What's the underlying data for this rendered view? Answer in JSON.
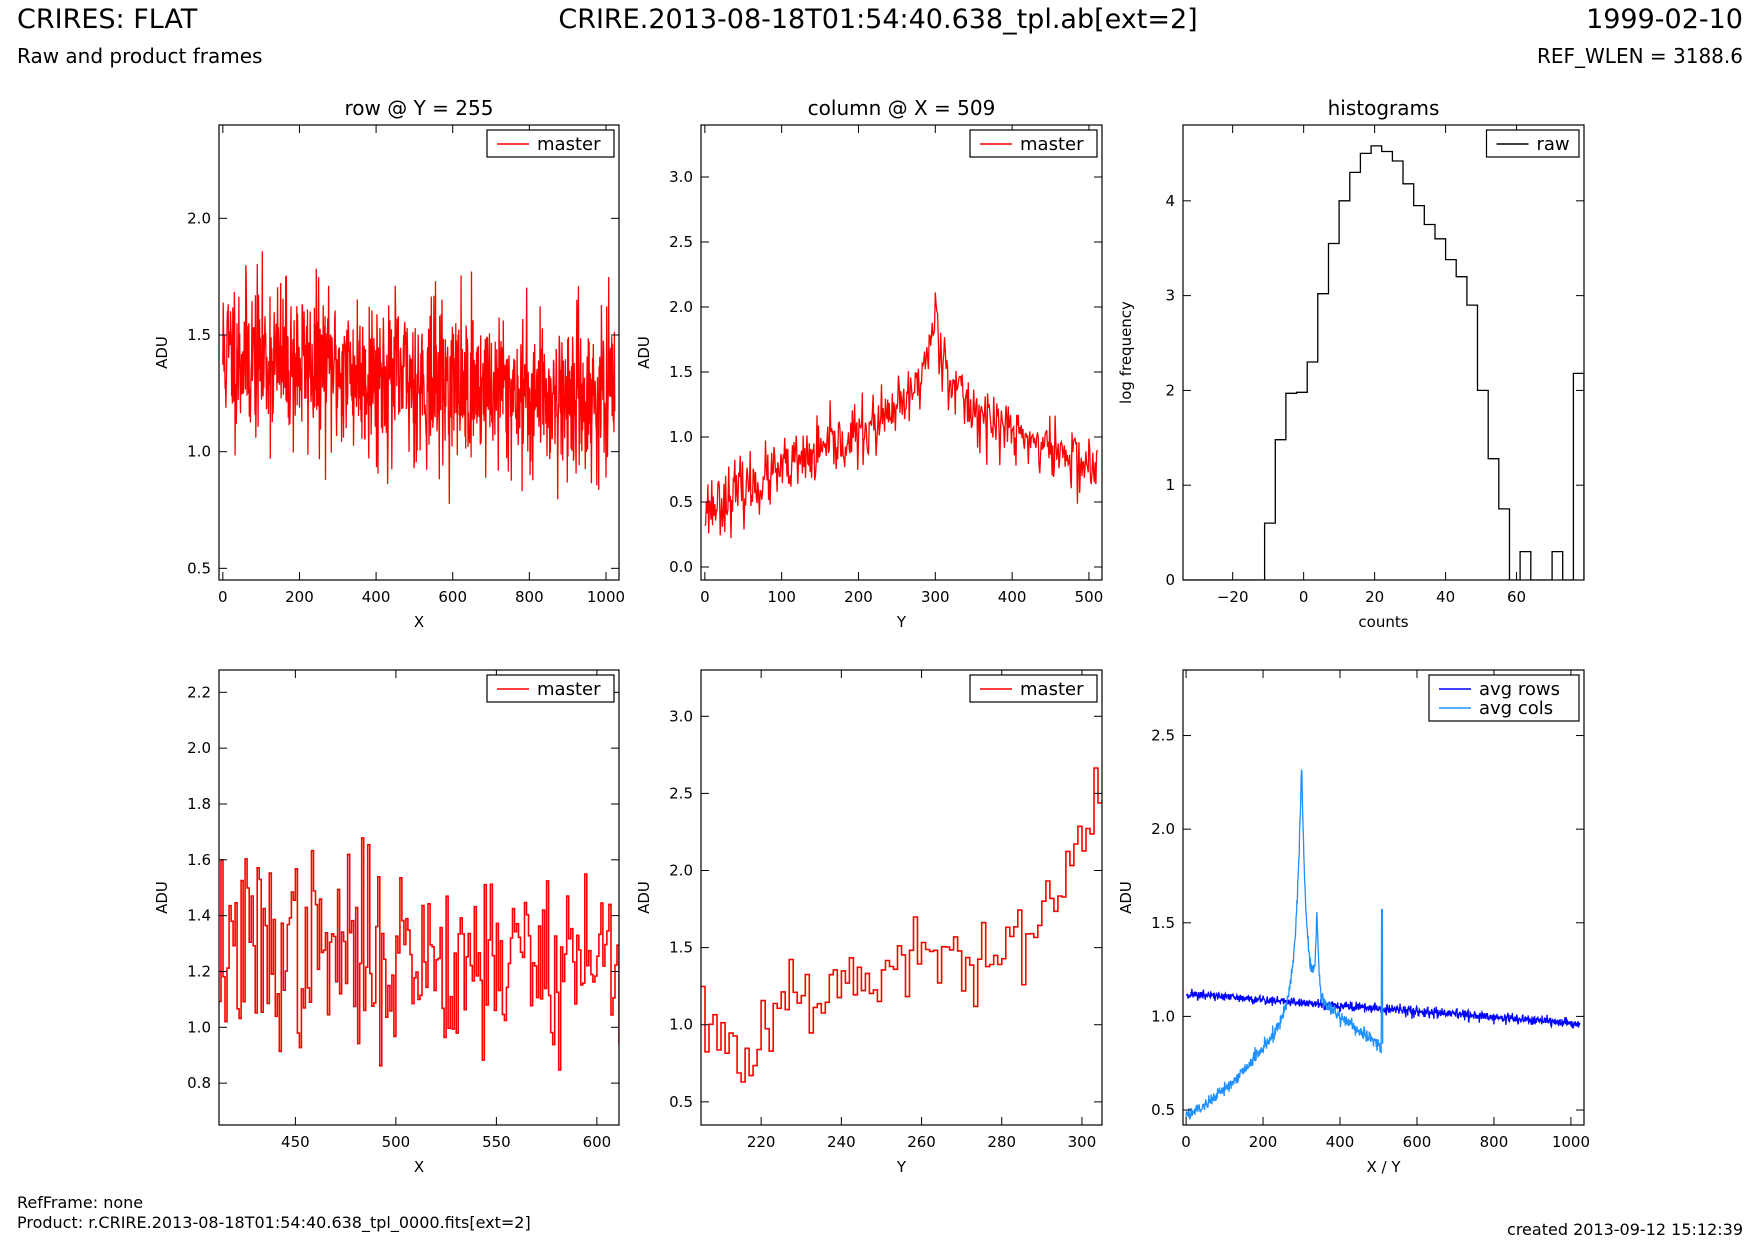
{
  "header": {
    "title_left": "CRIRES: FLAT",
    "subtitle_left": "Raw and product frames",
    "title_center": "CRIRE.2013-08-18T01:54:40.638_tpl.ab[ext=2]",
    "title_right": "1999-02-10",
    "subtitle_right": "REF_WLEN = 3188.6"
  },
  "footer": {
    "refframe": "RefFrame: none",
    "product": "Product: r.CRIRE.2013-08-18T01:54:40.638_tpl_0000.fits[ext=2]",
    "created": "created 2013-09-12 15:12:39"
  },
  "chart_data": [
    {
      "id": "row-plot",
      "type": "line",
      "title": "row @ Y = 255",
      "xlabel": "X",
      "ylabel": "ADU",
      "xlim": [
        -10,
        1034
      ],
      "ylim": [
        0.45,
        2.4
      ],
      "xticks": [
        0,
        200,
        400,
        600,
        800,
        1000
      ],
      "yticks": [
        0.5,
        1.0,
        1.5,
        2.0
      ],
      "ytick_labels": [
        "0.5",
        "1.0",
        "1.5",
        "2.0"
      ],
      "legend": {
        "position": "top-right",
        "entries": [
          "master"
        ]
      },
      "series": [
        {
          "name": "master",
          "color": "#ff0000",
          "x_range": [
            0,
            1023
          ],
          "n": 1024,
          "trend": [
            1.42,
            1.3,
            1.22
          ],
          "noise": 0.17,
          "seed": 11
        }
      ]
    },
    {
      "id": "column-plot",
      "type": "line",
      "title": "column @ X = 509",
      "xlabel": "Y",
      "ylabel": "ADU",
      "xlim": [
        -5,
        517
      ],
      "ylim": [
        -0.1,
        3.4
      ],
      "xticks": [
        0,
        100,
        200,
        300,
        400,
        500
      ],
      "yticks": [
        0.0,
        0.5,
        1.0,
        1.5,
        2.0,
        2.5,
        3.0
      ],
      "ytick_labels": [
        "0.0",
        "0.5",
        "1.0",
        "1.5",
        "2.0",
        "2.5",
        "3.0"
      ],
      "legend": {
        "position": "top-right",
        "entries": [
          "master"
        ]
      },
      "series": [
        {
          "name": "master",
          "color": "#ff0000",
          "x_range": [
            0,
            511
          ],
          "n": 512,
          "profile": "peak",
          "noise": 0.12,
          "seed": 23
        }
      ]
    },
    {
      "id": "histogram-plot",
      "type": "histogram",
      "title": "histograms",
      "xlabel": "counts",
      "ylabel": "log frequency",
      "xlim": [
        -34,
        79
      ],
      "ylim": [
        0,
        4.8
      ],
      "xticks": [
        -20,
        0,
        20,
        40,
        60
      ],
      "yticks": [
        0,
        1,
        2,
        3,
        4
      ],
      "ytick_labels": [
        "0",
        "1",
        "2",
        "3",
        "4"
      ],
      "legend": {
        "position": "top-right",
        "entries": [
          "raw"
        ]
      },
      "series": [
        {
          "name": "raw",
          "color": "#000000",
          "bin_edges": [
            -11,
            -8,
            -5,
            -2,
            1,
            4,
            7,
            10,
            13,
            16,
            19,
            22,
            25,
            28,
            31,
            34,
            37,
            40,
            43,
            46,
            49,
            52,
            55,
            58,
            61,
            64,
            67,
            70,
            73,
            76,
            79
          ],
          "log_counts": [
            0.6,
            1.48,
            1.97,
            1.98,
            2.3,
            3.02,
            3.55,
            4.0,
            4.3,
            4.5,
            4.58,
            4.52,
            4.42,
            4.18,
            3.95,
            3.75,
            3.6,
            3.38,
            3.2,
            2.9,
            2.0,
            1.28,
            0.75,
            0,
            0.3,
            0,
            0,
            0.3,
            0,
            2.18
          ]
        }
      ]
    },
    {
      "id": "row-zoom-plot",
      "type": "line",
      "title": "",
      "xlabel": "X",
      "ylabel": "ADU",
      "xlim": [
        412,
        611
      ],
      "ylim": [
        0.65,
        2.28
      ],
      "xticks": [
        450,
        500,
        550,
        600
      ],
      "yticks": [
        0.8,
        1.0,
        1.2,
        1.4,
        1.6,
        1.8,
        2.0,
        2.2
      ],
      "ytick_labels": [
        "0.8",
        "1.0",
        "1.2",
        "1.4",
        "1.6",
        "1.8",
        "2.0",
        "2.2"
      ],
      "legend": {
        "position": "top-right",
        "entries": [
          "master"
        ]
      },
      "series": [
        {
          "name": "master",
          "color": "#ff0000",
          "x_range": [
            412,
            611
          ],
          "n": 200,
          "steps": true,
          "trend": [
            1.28,
            1.26,
            1.25
          ],
          "noise": 0.17,
          "seed": 37
        }
      ]
    },
    {
      "id": "column-zoom-plot",
      "type": "line",
      "title": "",
      "xlabel": "Y",
      "ylabel": "ADU",
      "xlim": [
        205,
        305
      ],
      "ylim": [
        0.35,
        3.3
      ],
      "xticks": [
        220,
        240,
        260,
        280,
        300
      ],
      "yticks": [
        0.5,
        1.0,
        1.5,
        2.0,
        2.5,
        3.0
      ],
      "ytick_labels": [
        "0.5",
        "1.0",
        "1.5",
        "2.0",
        "2.5",
        "3.0"
      ],
      "legend": {
        "position": "top-right",
        "entries": [
          "master"
        ]
      },
      "series": [
        {
          "name": "master",
          "color": "#ff0000",
          "x_range": [
            205,
            305
          ],
          "n": 101,
          "steps": true,
          "profile": "rise",
          "noise": 0.14,
          "seed": 53
        }
      ]
    },
    {
      "id": "average-plot",
      "type": "line",
      "title": "",
      "xlabel": "X / Y",
      "ylabel": "ADU",
      "xlim": [
        -8,
        1034
      ],
      "ylim": [
        0.42,
        2.85
      ],
      "xticks": [
        0,
        200,
        400,
        600,
        800,
        1000
      ],
      "yticks": [
        0.5,
        1.0,
        1.5,
        2.0,
        2.5
      ],
      "ytick_labels": [
        "0.5",
        "1.0",
        "1.5",
        "2.0",
        "2.5"
      ],
      "legend": {
        "position": "top-right",
        "entries": [
          "avg rows",
          "avg cols"
        ]
      },
      "series": [
        {
          "name": "avg rows",
          "color": "#0000ff",
          "x_range": [
            0,
            1023
          ],
          "n": 1024,
          "trend": [
            1.12,
            1.04,
            0.96
          ],
          "noise": 0.013,
          "seed": 71
        },
        {
          "name": "avg cols",
          "color": "#1e90ff",
          "x_range": [
            0,
            511
          ],
          "n": 512,
          "profile": "avgpeak",
          "noise": 0.018,
          "seed": 89
        }
      ]
    }
  ]
}
